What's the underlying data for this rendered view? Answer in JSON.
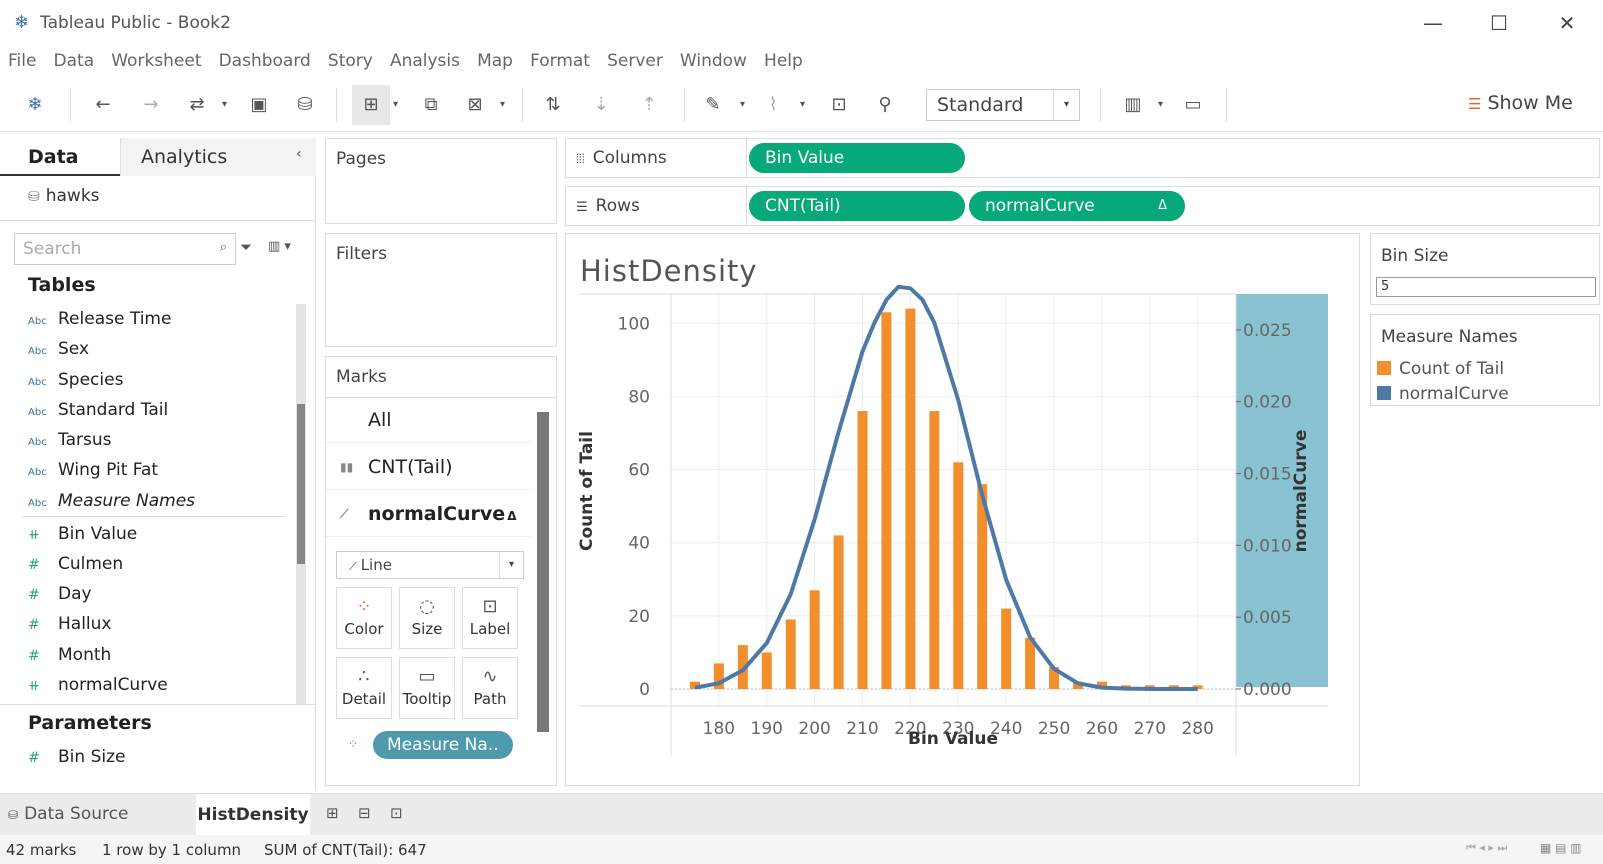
{
  "app": {
    "title": "Tableau Public - Book2"
  },
  "menu": [
    "File",
    "Data",
    "Worksheet",
    "Dashboard",
    "Story",
    "Analysis",
    "Map",
    "Format",
    "Server",
    "Window",
    "Help"
  ],
  "toolbar": {
    "fit_select": "Standard",
    "show_me": "Show Me"
  },
  "data_pane": {
    "tab_data": "Data",
    "tab_analytics": "Analytics",
    "datasource": "hawks",
    "search_placeholder": "Search",
    "tables_header": "Tables",
    "dimensions": [
      "Release Time",
      "Sex",
      "Species",
      "Standard Tail",
      "Tarsus",
      "Wing Pit Fat",
      "Measure Names"
    ],
    "dimension_type": "Abc",
    "measures": [
      "Bin Value",
      "Culmen",
      "Day",
      "Hallux",
      "Month",
      "normalCurve"
    ],
    "parameters_header": "Parameters",
    "parameters": [
      "Bin Size"
    ]
  },
  "cards": {
    "pages": "Pages",
    "filters": "Filters",
    "marks": "Marks"
  },
  "shelves": {
    "columns_label": "Columns",
    "rows_label": "Rows",
    "columns_pills": [
      "Bin Value"
    ],
    "rows_pills": [
      "CNT(Tail)",
      "normalCurve"
    ],
    "delta": "Δ"
  },
  "marks_card": {
    "all": "All",
    "cnt": "CNT(Tail)",
    "curve": "normalCurve",
    "delta": "Δ",
    "mark_type": "Line",
    "buttons": [
      "Color",
      "Size",
      "Label",
      "Detail",
      "Tooltip",
      "Path"
    ],
    "color_pill": "Measure Na.."
  },
  "view": {
    "title": "HistDensity"
  },
  "legends": {
    "bin_size_title": "Bin Size",
    "bin_size_value": "5",
    "measure_names_title": "Measure Names",
    "items": [
      {
        "label": "Count of Tail",
        "color": "#f28e2b"
      },
      {
        "label": "normalCurve",
        "color": "#4e79a7"
      }
    ]
  },
  "sheet_tabs": {
    "data_source": "Data Source",
    "active": "HistDensity"
  },
  "status": {
    "marks": "42 marks",
    "dims": "1 row by 1 column",
    "sum": "SUM of CNT(Tail): 647"
  },
  "chart_data": {
    "type": "bar",
    "title": "",
    "xlabel": "Bin Value",
    "ylabel": "Count of Tail",
    "y2label": "normalCurve",
    "x_ticks": [
      180,
      190,
      200,
      210,
      220,
      230,
      240,
      250,
      260,
      270,
      280
    ],
    "y_ticks": [
      0,
      20,
      40,
      60,
      80,
      100
    ],
    "y2_ticks": [
      "0.000",
      "0.005",
      "0.010",
      "0.015",
      "0.020",
      "0.025"
    ],
    "ylim": [
      0,
      108
    ],
    "y2lim": [
      0,
      0.0275
    ],
    "bar_color": "#f28e2b",
    "line_color": "#4e79a7",
    "series": [
      {
        "name": "Count of Tail",
        "x": [
          175,
          180,
          185,
          190,
          195,
          200,
          205,
          210,
          215,
          220,
          225,
          230,
          235,
          240,
          245,
          250,
          255,
          260,
          265,
          270,
          275,
          280
        ],
        "values": [
          2,
          7,
          12,
          10,
          19,
          27,
          42,
          76,
          103,
          104,
          76,
          62,
          56,
          22,
          14,
          6,
          2,
          2,
          1,
          1,
          1,
          1
        ]
      },
      {
        "name": "normalCurve",
        "x": [
          175,
          180,
          185,
          190,
          195,
          200,
          205,
          210,
          212.5,
          215,
          217.5,
          220,
          222.5,
          225,
          230,
          235,
          240,
          245,
          250,
          255,
          260,
          265,
          270,
          275,
          280
        ],
        "values": [
          0.0001,
          0.0004,
          0.0013,
          0.0032,
          0.0066,
          0.0118,
          0.0179,
          0.0235,
          0.0255,
          0.0271,
          0.028,
          0.0279,
          0.0271,
          0.0255,
          0.0201,
          0.0135,
          0.0076,
          0.0036,
          0.0014,
          0.0004,
          0.0001,
          3e-05,
          0.0,
          0.0,
          0.0
        ]
      }
    ]
  }
}
